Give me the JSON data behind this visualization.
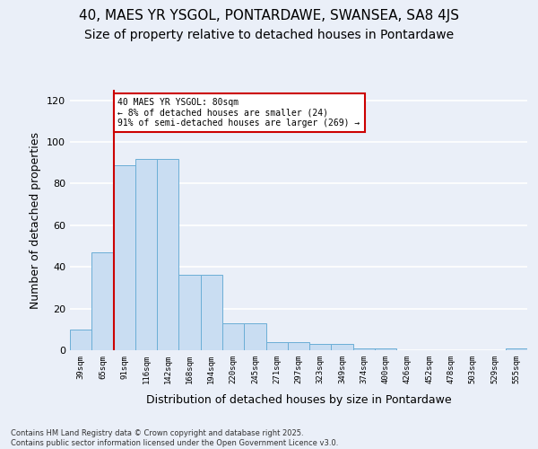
{
  "title": "40, MAES YR YSGOL, PONTARDAWE, SWANSEA, SA8 4JS",
  "subtitle": "Size of property relative to detached houses in Pontardawe",
  "xlabel": "Distribution of detached houses by size in Pontardawe",
  "ylabel": "Number of detached properties",
  "categories": [
    "39sqm",
    "65sqm",
    "91sqm",
    "116sqm",
    "142sqm",
    "168sqm",
    "194sqm",
    "220sqm",
    "245sqm",
    "271sqm",
    "297sqm",
    "323sqm",
    "349sqm",
    "374sqm",
    "400sqm",
    "426sqm",
    "452sqm",
    "478sqm",
    "503sqm",
    "529sqm",
    "555sqm"
  ],
  "values": [
    10,
    47,
    89,
    92,
    92,
    36,
    36,
    13,
    13,
    4,
    4,
    3,
    3,
    1,
    1,
    0,
    0,
    0,
    0,
    0,
    1
  ],
  "bar_color": "#c9ddf2",
  "bar_edge_color": "#6baed6",
  "background_color": "#eaeff8",
  "grid_color": "#ffffff",
  "vline_x": 1.5,
  "vline_color": "#cc0000",
  "annotation_text": "40 MAES YR YSGOL: 80sqm\n← 8% of detached houses are smaller (24)\n91% of semi-detached houses are larger (269) →",
  "annotation_box_color": "#ffffff",
  "annotation_box_edge": "#cc0000",
  "ylim": [
    0,
    125
  ],
  "yticks": [
    0,
    20,
    40,
    60,
    80,
    100,
    120
  ],
  "title_fontsize": 11,
  "subtitle_fontsize": 10,
  "xlabel_fontsize": 9,
  "ylabel_fontsize": 9,
  "footer_line1": "Contains HM Land Registry data © Crown copyright and database right 2025.",
  "footer_line2": "Contains public sector information licensed under the Open Government Licence v3.0."
}
